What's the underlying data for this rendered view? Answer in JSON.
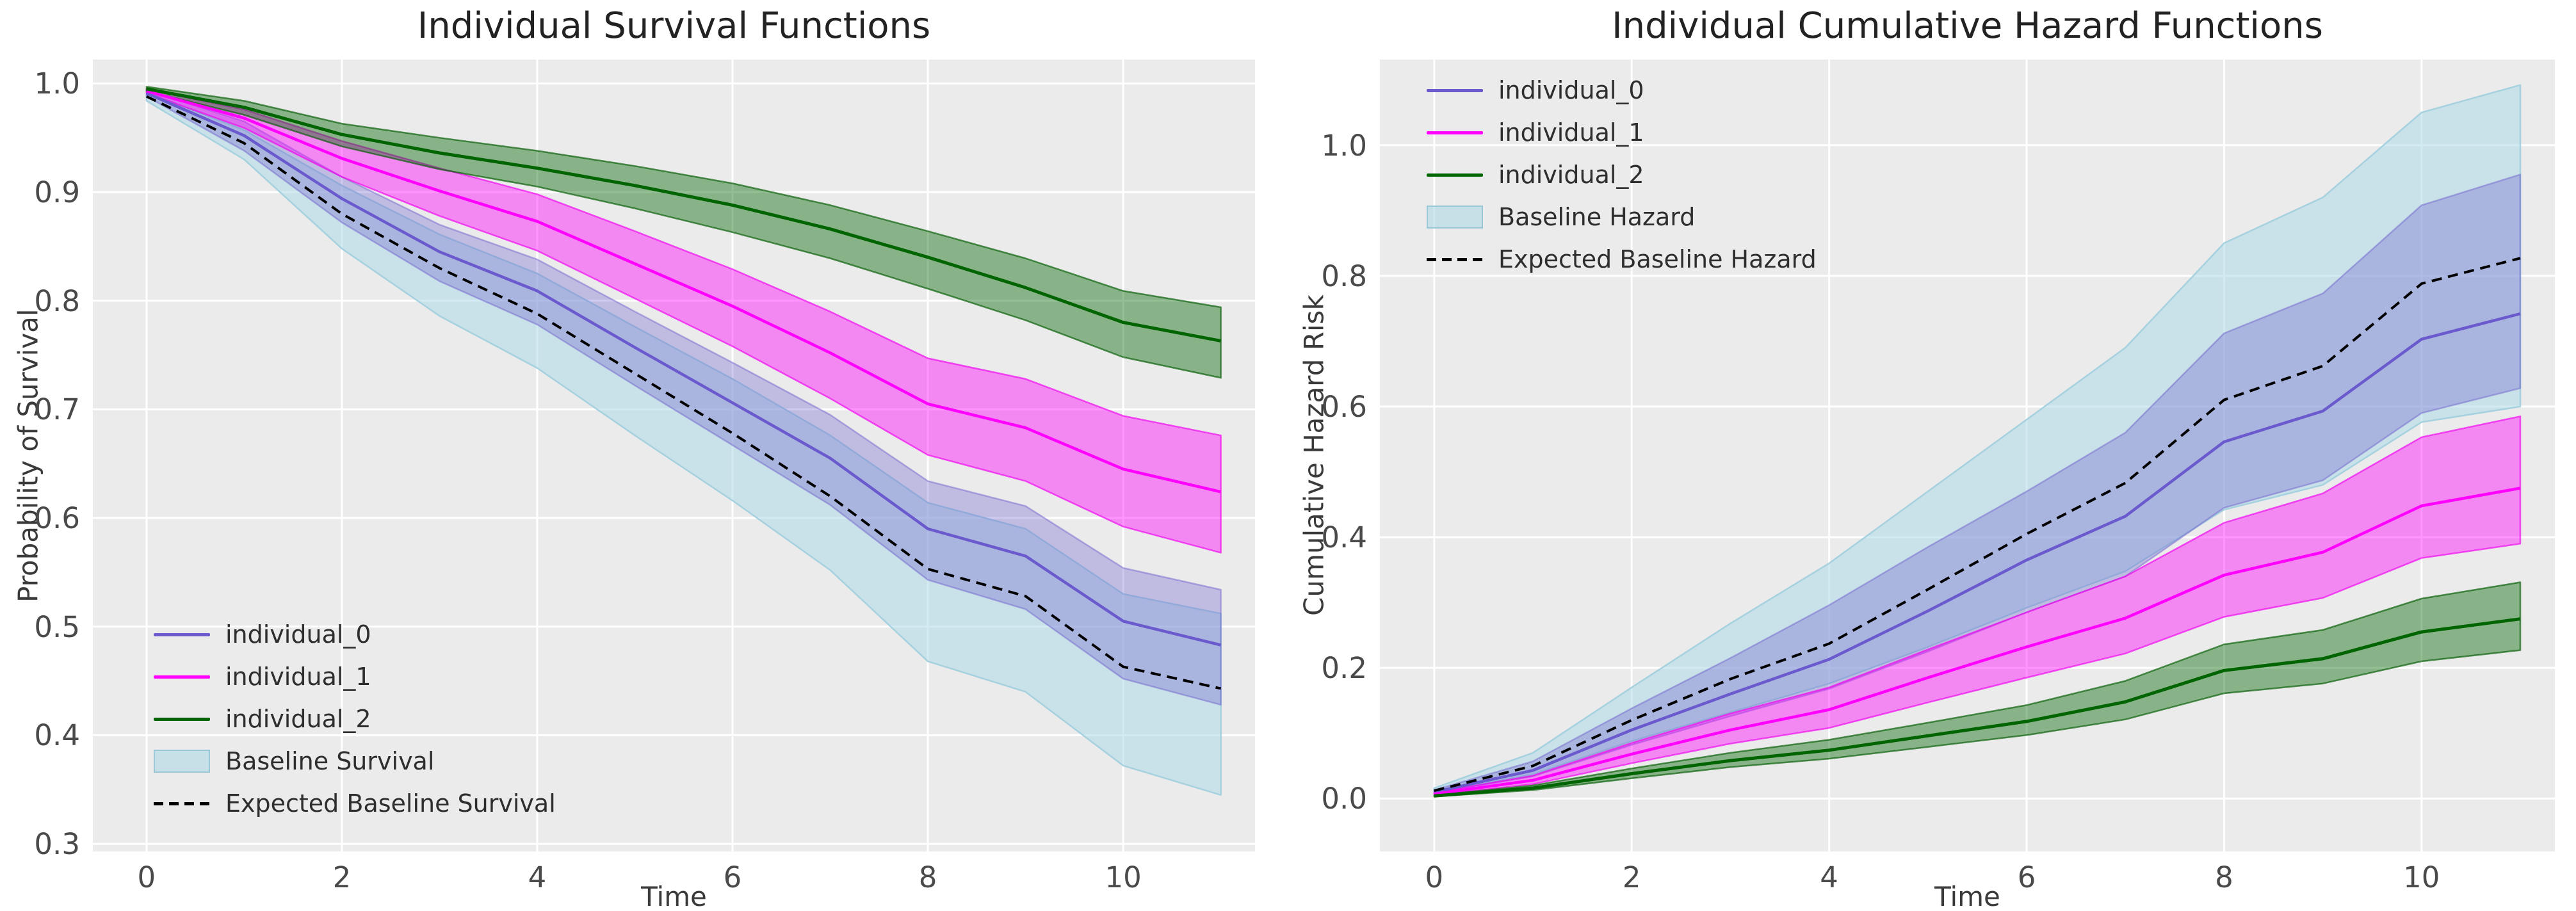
{
  "figure": {
    "background": "#ffffff",
    "axes_background": "#ebebeb",
    "grid_color": "#ffffff",
    "tick_color": "#4a4a4a",
    "title_color": "#222222",
    "colors": {
      "individual_0": "#6A5ACD",
      "individual_1": "#FF00FF",
      "individual_2": "#006400",
      "expected_baseline": "#000000",
      "baseline_band": "#ADD8E6"
    }
  },
  "chart_data": [
    {
      "type": "line",
      "title": "Individual Survival Functions",
      "xlabel": "Time",
      "ylabel": "Probability of Survival",
      "x": [
        0,
        1,
        2,
        3,
        4,
        5,
        6,
        7,
        8,
        9,
        10,
        11
      ],
      "xlim": [
        -0.55,
        11.35
      ],
      "ylim": [
        0.293,
        1.022
      ],
      "grid": true,
      "legend_position": "lower left",
      "xtick_values": [
        0,
        2,
        4,
        6,
        8,
        10
      ],
      "xtick_labels": [
        "0",
        "2",
        "4",
        "6",
        "8",
        "10"
      ],
      "ytick_values": [
        1.0,
        0.9,
        0.8,
        0.7,
        0.6,
        0.5,
        0.4,
        0.3
      ],
      "ytick_labels": [
        "1.0",
        "0.9",
        "0.8",
        "0.7",
        "0.6",
        "0.5",
        "0.4",
        "0.3"
      ],
      "bands": [
        {
          "name": "baseline-survival-band",
          "fill": "rgba(173,216,230,0.55)",
          "edge": "rgba(163,208,222,0.95)",
          "upper": [
            0.992,
            0.957,
            0.906,
            0.861,
            0.825,
            0.776,
            0.728,
            0.676,
            0.614,
            0.59,
            0.53,
            0.512
          ],
          "lower": [
            0.984,
            0.93,
            0.848,
            0.786,
            0.738,
            0.676,
            0.616,
            0.552,
            0.468,
            0.44,
            0.372,
            0.345
          ]
        },
        {
          "name": "individual_0-confidence-band",
          "fill": "rgba(106,90,205,0.33)",
          "edge": "rgba(106,90,205,0.45)",
          "upper": [
            0.994,
            0.965,
            0.914,
            0.87,
            0.838,
            0.79,
            0.743,
            0.695,
            0.634,
            0.611,
            0.554,
            0.534
          ],
          "lower": [
            0.988,
            0.938,
            0.872,
            0.818,
            0.778,
            0.722,
            0.667,
            0.612,
            0.543,
            0.516,
            0.452,
            0.428
          ]
        },
        {
          "name": "individual_1-confidence-band",
          "fill": "rgba(255,0,255,0.42)",
          "edge": "rgba(240,0,240,0.65)",
          "upper": [
            0.995,
            0.976,
            0.947,
            0.922,
            0.898,
            0.864,
            0.829,
            0.79,
            0.747,
            0.728,
            0.694,
            0.676
          ],
          "lower": [
            0.991,
            0.959,
            0.914,
            0.878,
            0.846,
            0.802,
            0.758,
            0.71,
            0.658,
            0.634,
            0.592,
            0.568
          ]
        },
        {
          "name": "individual_2-confidence-band",
          "fill": "rgba(0,100,0,0.42)",
          "edge": "rgba(0,90,0,0.65)",
          "upper": [
            0.997,
            0.984,
            0.963,
            0.95,
            0.938,
            0.924,
            0.908,
            0.888,
            0.864,
            0.839,
            0.809,
            0.794
          ],
          "lower": [
            0.993,
            0.971,
            0.942,
            0.921,
            0.905,
            0.885,
            0.863,
            0.839,
            0.811,
            0.782,
            0.748,
            0.729
          ]
        }
      ],
      "series": [
        {
          "name": "individual_0",
          "color": "#6A5ACD",
          "style": "solid",
          "width": 4.5,
          "values": [
            0.991,
            0.952,
            0.894,
            0.845,
            0.809,
            0.757,
            0.706,
            0.655,
            0.59,
            0.565,
            0.505,
            0.483
          ]
        },
        {
          "name": "individual_1",
          "color": "#FF00FF",
          "style": "solid",
          "width": 4.5,
          "values": [
            0.993,
            0.968,
            0.931,
            0.901,
            0.873,
            0.834,
            0.795,
            0.752,
            0.705,
            0.683,
            0.645,
            0.624
          ]
        },
        {
          "name": "individual_2",
          "color": "#006400",
          "style": "solid",
          "width": 5,
          "values": [
            0.995,
            0.978,
            0.953,
            0.936,
            0.922,
            0.906,
            0.888,
            0.866,
            0.84,
            0.812,
            0.78,
            0.763
          ]
        },
        {
          "name": "Expected Baseline Survival",
          "color": "#000000",
          "style": "dashed",
          "width": 4,
          "values": [
            0.988,
            0.945,
            0.88,
            0.83,
            0.788,
            0.733,
            0.678,
            0.62,
            0.553,
            0.528,
            0.463,
            0.443
          ]
        }
      ],
      "legend": [
        {
          "label": "individual_0",
          "swatch": "line",
          "color": "#6A5ACD"
        },
        {
          "label": "individual_1",
          "swatch": "line",
          "color": "#FF00FF"
        },
        {
          "label": "individual_2",
          "swatch": "line",
          "color": "#006400"
        },
        {
          "label": "Baseline Survival",
          "swatch": "patch",
          "color": "#ADD8E6"
        },
        {
          "label": "Expected Baseline Survival",
          "swatch": "dashed",
          "color": "#000000"
        }
      ]
    },
    {
      "type": "line",
      "title": "Individual Cumulative Hazard Functions",
      "xlabel": "Time",
      "ylabel": "Cumulative Hazard Risk",
      "x": [
        0,
        1,
        2,
        3,
        4,
        5,
        6,
        7,
        8,
        9,
        10,
        11
      ],
      "xlim": [
        -0.55,
        11.35
      ],
      "ylim": [
        -0.081,
        1.131
      ],
      "grid": true,
      "legend_position": "upper left",
      "xtick_values": [
        0,
        2,
        4,
        6,
        8,
        10
      ],
      "xtick_labels": [
        "0",
        "2",
        "4",
        "6",
        "8",
        "10"
      ],
      "ytick_values": [
        1.0,
        0.8,
        0.6,
        0.4,
        0.2,
        0.0
      ],
      "ytick_labels": [
        "1.0",
        "0.8",
        "0.6",
        "0.4",
        "0.2",
        "0.0"
      ],
      "bands": [
        {
          "name": "baseline-hazard-band",
          "fill": "rgba(173,216,230,0.55)",
          "edge": "rgba(163,208,222,0.95)",
          "upper": [
            0.016,
            0.07,
            0.17,
            0.268,
            0.36,
            0.47,
            0.58,
            0.69,
            0.85,
            0.92,
            1.05,
            1.092
          ],
          "lower": [
            0.009,
            0.037,
            0.088,
            0.132,
            0.176,
            0.232,
            0.292,
            0.348,
            0.442,
            0.48,
            0.576,
            0.6
          ]
        },
        {
          "name": "individual_0-confidence-band",
          "fill": "rgba(106,90,205,0.33)",
          "edge": "rgba(106,90,205,0.45)",
          "upper": [
            0.013,
            0.057,
            0.138,
            0.215,
            0.296,
            0.385,
            0.47,
            0.56,
            0.712,
            0.773,
            0.908,
            0.955
          ],
          "lower": [
            0.008,
            0.034,
            0.082,
            0.126,
            0.168,
            0.225,
            0.285,
            0.34,
            0.445,
            0.487,
            0.59,
            0.628
          ]
        },
        {
          "name": "individual_1-confidence-band",
          "fill": "rgba(255,0,255,0.42)",
          "edge": "rgba(240,0,240,0.65)",
          "upper": [
            0.009,
            0.035,
            0.085,
            0.13,
            0.17,
            0.228,
            0.285,
            0.34,
            0.422,
            0.467,
            0.553,
            0.585
          ],
          "lower": [
            0.005,
            0.022,
            0.054,
            0.084,
            0.108,
            0.147,
            0.185,
            0.222,
            0.278,
            0.307,
            0.368,
            0.39
          ]
        },
        {
          "name": "individual_2-confidence-band",
          "fill": "rgba(0,100,0,0.42)",
          "edge": "rgba(0,90,0,0.65)",
          "upper": [
            0.005,
            0.02,
            0.046,
            0.07,
            0.09,
            0.116,
            0.143,
            0.18,
            0.236,
            0.258,
            0.306,
            0.331
          ],
          "lower": [
            0.003,
            0.013,
            0.031,
            0.048,
            0.061,
            0.079,
            0.097,
            0.121,
            0.161,
            0.176,
            0.21,
            0.227
          ]
        }
      ],
      "series": [
        {
          "name": "individual_0",
          "color": "#6A5ACD",
          "style": "solid",
          "width": 4.5,
          "values": [
            0.01,
            0.043,
            0.105,
            0.16,
            0.213,
            0.287,
            0.365,
            0.432,
            0.546,
            0.593,
            0.703,
            0.742
          ]
        },
        {
          "name": "individual_1",
          "color": "#FF00FF",
          "style": "solid",
          "width": 4.5,
          "values": [
            0.007,
            0.028,
            0.068,
            0.105,
            0.136,
            0.185,
            0.232,
            0.276,
            0.342,
            0.377,
            0.448,
            0.475
          ]
        },
        {
          "name": "individual_2",
          "color": "#006400",
          "style": "solid",
          "width": 5,
          "values": [
            0.004,
            0.016,
            0.038,
            0.058,
            0.074,
            0.096,
            0.118,
            0.148,
            0.196,
            0.214,
            0.255,
            0.275
          ]
        },
        {
          "name": "Expected Baseline Hazard",
          "color": "#000000",
          "style": "dashed",
          "width": 4,
          "values": [
            0.012,
            0.05,
            0.12,
            0.183,
            0.237,
            0.32,
            0.405,
            0.483,
            0.61,
            0.662,
            0.788,
            0.827
          ]
        }
      ],
      "legend": [
        {
          "label": "individual_0",
          "swatch": "line",
          "color": "#6A5ACD"
        },
        {
          "label": "individual_1",
          "swatch": "line",
          "color": "#FF00FF"
        },
        {
          "label": "individual_2",
          "swatch": "line",
          "color": "#006400"
        },
        {
          "label": "Baseline Hazard",
          "swatch": "patch",
          "color": "#ADD8E6"
        },
        {
          "label": "Expected Baseline Hazard",
          "swatch": "dashed",
          "color": "#000000"
        }
      ]
    }
  ]
}
